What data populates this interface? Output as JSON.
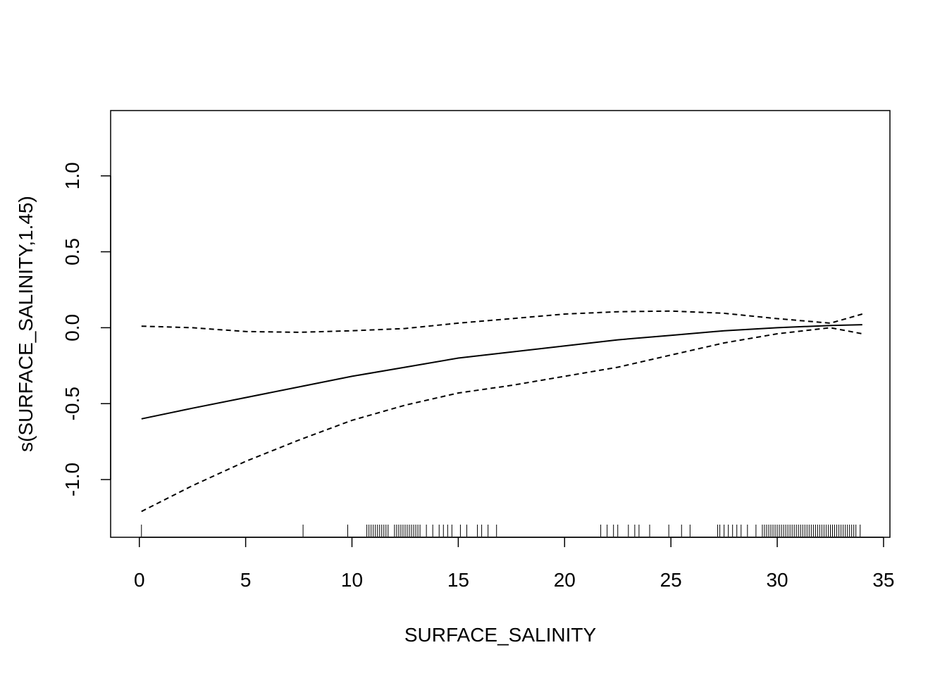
{
  "chart_data": {
    "type": "line",
    "xlabel": "SURFACE_SALINITY",
    "ylabel": "s(SURFACE_SALINITY,1.45)",
    "xlim": [
      -1.35,
      35.3
    ],
    "ylim": [
      -1.38,
      1.43
    ],
    "x_ticks": [
      {
        "value": 0,
        "label": "0"
      },
      {
        "value": 5,
        "label": "5"
      },
      {
        "value": 10,
        "label": "10"
      },
      {
        "value": 15,
        "label": "15"
      },
      {
        "value": 20,
        "label": "20"
      },
      {
        "value": 25,
        "label": "25"
      },
      {
        "value": 30,
        "label": "30"
      },
      {
        "value": 35,
        "label": "35"
      }
    ],
    "y_ticks": [
      {
        "value": -1.0,
        "label": "-1.0"
      },
      {
        "value": -0.5,
        "label": "-0.5"
      },
      {
        "value": 0.0,
        "label": "0.0"
      },
      {
        "value": 0.5,
        "label": "0.5"
      },
      {
        "value": 1.0,
        "label": "1.0"
      }
    ],
    "grid": false,
    "legend": "none",
    "series": [
      {
        "role": "fit",
        "style": "solid",
        "x": [
          0.1,
          2.5,
          5,
          7.5,
          10,
          12.5,
          15,
          17.5,
          20,
          22.5,
          25,
          27.5,
          30,
          32.5,
          34
        ],
        "y": [
          -0.6,
          -0.53,
          -0.46,
          -0.39,
          -0.32,
          -0.26,
          -0.2,
          -0.16,
          -0.12,
          -0.08,
          -0.05,
          -0.02,
          0.0,
          0.015,
          0.02
        ]
      },
      {
        "role": "upper-band",
        "style": "dashed",
        "x": [
          0.1,
          2.5,
          5,
          7.5,
          10,
          12.5,
          15,
          17.5,
          20,
          22.5,
          25,
          27.5,
          30,
          32.5,
          34
        ],
        "y": [
          0.01,
          0.0,
          -0.025,
          -0.03,
          -0.02,
          -0.005,
          0.03,
          0.06,
          0.09,
          0.105,
          0.11,
          0.095,
          0.06,
          0.03,
          0.09
        ]
      },
      {
        "role": "lower-band",
        "style": "dashed",
        "x": [
          0.1,
          2.5,
          5,
          7.5,
          10,
          12.5,
          15,
          17.5,
          20,
          22.5,
          25,
          27.5,
          30,
          32.5,
          34
        ],
        "y": [
          -1.21,
          -1.04,
          -0.88,
          -0.74,
          -0.61,
          -0.51,
          -0.43,
          -0.38,
          -0.32,
          -0.26,
          -0.18,
          -0.1,
          -0.04,
          0.0,
          -0.04
        ]
      }
    ],
    "rug": [
      0.1,
      7.7,
      9.8,
      10.7,
      10.8,
      10.9,
      11.0,
      11.1,
      11.2,
      11.3,
      11.4,
      11.5,
      11.6,
      11.7,
      12.0,
      12.1,
      12.2,
      12.3,
      12.4,
      12.5,
      12.6,
      12.7,
      12.8,
      12.9,
      13.0,
      13.1,
      13.2,
      13.5,
      13.8,
      14.1,
      14.3,
      14.5,
      14.7,
      15.1,
      15.4,
      15.9,
      16.1,
      16.4,
      16.8,
      21.7,
      22.0,
      22.3,
      22.5,
      23.0,
      23.3,
      23.5,
      24.0,
      24.9,
      25.5,
      25.9,
      27.2,
      27.3,
      27.5,
      27.7,
      27.9,
      28.1,
      28.3,
      28.6,
      29.0,
      29.3,
      29.4,
      29.5,
      29.6,
      29.7,
      29.8,
      29.9,
      30.0,
      30.1,
      30.2,
      30.3,
      30.4,
      30.5,
      30.6,
      30.7,
      30.8,
      30.9,
      31.0,
      31.1,
      31.2,
      31.3,
      31.4,
      31.5,
      31.6,
      31.7,
      31.8,
      31.9,
      32.0,
      32.1,
      32.2,
      32.3,
      32.4,
      32.5,
      32.6,
      32.7,
      32.8,
      32.9,
      33.0,
      33.1,
      33.2,
      33.3,
      33.4,
      33.5,
      33.6,
      33.7,
      33.9
    ]
  }
}
